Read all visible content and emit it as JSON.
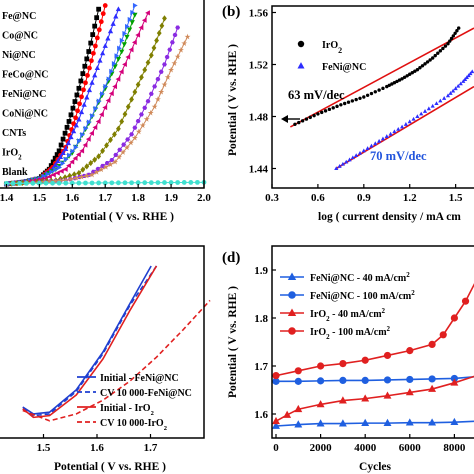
{
  "chart_data": [
    {
      "panel": "a",
      "type": "line",
      "xlabel": "Potential ( V vs. RHE )",
      "xlim": [
        1.35,
        2.0
      ],
      "ylim": [
        0,
        100
      ],
      "xticks": [
        "1.4",
        "1.5",
        "1.6",
        "1.7",
        "1.8",
        "1.9",
        "2.0"
      ],
      "legend_position": "top-left",
      "series": [
        {
          "name": "Fe@NC",
          "color": "#000000",
          "marker": "square",
          "x": [
            1.4,
            1.45,
            1.5,
            1.53,
            1.56,
            1.59,
            1.62,
            1.65,
            1.68
          ],
          "y": [
            0,
            1,
            3,
            8,
            18,
            34,
            52,
            72,
            95
          ]
        },
        {
          "name": "Co@NC",
          "color": "#ff0000",
          "marker": "circle",
          "x": [
            1.4,
            1.45,
            1.5,
            1.54,
            1.58,
            1.61,
            1.64,
            1.67,
            1.7
          ],
          "y": [
            0,
            1,
            3,
            9,
            20,
            36,
            55,
            75,
            97
          ]
        },
        {
          "name": "Ni@NC",
          "color": "#2d2dff",
          "marker": "triangle",
          "x": [
            1.4,
            1.45,
            1.5,
            1.54,
            1.58,
            1.62,
            1.66,
            1.7,
            1.74
          ],
          "y": [
            0,
            1,
            3,
            8,
            19,
            35,
            55,
            75,
            95
          ]
        },
        {
          "name": "FeCo@NC",
          "color": "#00a000",
          "marker": "down-triangle",
          "x": [
            1.4,
            1.45,
            1.5,
            1.55,
            1.6,
            1.65,
            1.7,
            1.75,
            1.79
          ],
          "y": [
            0,
            1,
            3,
            8,
            17,
            33,
            52,
            72,
            92
          ]
        },
        {
          "name": "FeNi@NC",
          "color": "#3366ff",
          "marker": "right-triangle",
          "x": [
            1.4,
            1.45,
            1.5,
            1.56,
            1.61,
            1.66,
            1.71,
            1.75,
            1.79
          ],
          "y": [
            0,
            1,
            3,
            9,
            20,
            37,
            57,
            78,
            97
          ]
        },
        {
          "name": "CoNi@NC",
          "color": "#d4007a",
          "marker": "left-triangle",
          "x": [
            1.4,
            1.46,
            1.52,
            1.58,
            1.63,
            1.68,
            1.73,
            1.78,
            1.83
          ],
          "y": [
            0,
            1,
            3,
            8,
            18,
            34,
            53,
            73,
            93
          ]
        },
        {
          "name": "CNTs",
          "color": "#7f7f00",
          "marker": "diamond",
          "x": [
            1.4,
            1.48,
            1.55,
            1.62,
            1.68,
            1.74,
            1.79,
            1.84,
            1.88
          ],
          "y": [
            0,
            1,
            2,
            6,
            15,
            30,
            50,
            70,
            90
          ]
        },
        {
          "name": "IrO2",
          "color": "#8a2be2",
          "marker": "hexagon",
          "x": [
            1.4,
            1.5,
            1.58,
            1.65,
            1.72,
            1.78,
            1.83,
            1.88,
            1.92
          ],
          "y": [
            0,
            1,
            2,
            5,
            13,
            27,
            45,
            65,
            85
          ]
        },
        {
          "name": "Blank",
          "color": "#d08a5a",
          "marker": "star",
          "x": [
            1.4,
            1.5,
            1.58,
            1.66,
            1.73,
            1.79,
            1.85,
            1.9,
            1.95
          ],
          "y": [
            0,
            1,
            2,
            5,
            12,
            25,
            42,
            62,
            80
          ]
        },
        {
          "name": "",
          "color": "#40e0d0",
          "marker": "circle",
          "x": [
            1.4,
            1.5,
            1.6,
            1.7,
            1.8,
            1.9,
            2.0
          ],
          "y": [
            0.3,
            0.4,
            0.5,
            0.6,
            0.7,
            0.8,
            0.9
          ]
        }
      ]
    },
    {
      "panel": "b",
      "type": "scatter",
      "xlabel": "log ( current density / mA cm",
      "ylabel": "Potential ( V vs. RHE )",
      "xlim": [
        0.3,
        1.62
      ],
      "ylim": [
        1.425,
        1.565
      ],
      "xticks": [
        "0.3",
        "0.6",
        "0.9",
        "1.2",
        "1.5"
      ],
      "yticks": [
        "1.44",
        "1.48",
        "1.52",
        "1.56"
      ],
      "legend_position": "top-left",
      "series": [
        {
          "name": "IrO2",
          "color": "#000000",
          "marker": "circle",
          "x": [
            0.45,
            0.6,
            0.75,
            0.9,
            1.05,
            1.15,
            1.25,
            1.35,
            1.45,
            1.52
          ],
          "y": [
            1.474,
            1.482,
            1.489,
            1.495,
            1.503,
            1.509,
            1.516,
            1.525,
            1.536,
            1.548
          ]
        },
        {
          "name": "FeNi@NC",
          "color": "#2d2dff",
          "marker": "triangle",
          "x": [
            0.72,
            0.85,
            1.0,
            1.15,
            1.3,
            1.45,
            1.55,
            1.62
          ],
          "y": [
            1.44,
            1.45,
            1.461,
            1.472,
            1.484,
            1.496,
            1.507,
            1.516
          ]
        }
      ],
      "fits": [
        {
          "label": "63 mV/dec",
          "color": "#000000",
          "x": [
            0.42,
            1.62
          ],
          "y": [
            1.472,
            1.548
          ]
        },
        {
          "label": "70 mV/dec",
          "color": "#2255dd",
          "x": [
            0.72,
            1.62
          ],
          "y": [
            1.44,
            1.503
          ]
        }
      ]
    },
    {
      "panel": "c",
      "type": "line",
      "xlabel": "Potential ( V vs. RHE )",
      "xlim": [
        1.4,
        1.8
      ],
      "ylim": [
        0,
        100
      ],
      "xticks": [
        "1.5",
        "1.6",
        "1.7"
      ],
      "legend_position": "bottom-right",
      "series": [
        {
          "name": "Initial - FeNi@NC",
          "color": "#1f3fd0",
          "style": "solid",
          "x": [
            1.45,
            1.47,
            1.5,
            1.55,
            1.6,
            1.65,
            1.69
          ],
          "y": [
            18,
            14,
            15,
            28,
            50,
            78,
            100
          ]
        },
        {
          "name": "CV 10 000-FeNi@NC",
          "color": "#1f3fd0",
          "style": "dashed",
          "x": [
            1.45,
            1.47,
            1.5,
            1.55,
            1.6,
            1.65,
            1.7
          ],
          "y": [
            17,
            13,
            14,
            27,
            49,
            77,
            100
          ]
        },
        {
          "name": "Initial - IrO2",
          "color": "#e02020",
          "style": "solid",
          "x": [
            1.45,
            1.47,
            1.5,
            1.55,
            1.6,
            1.65,
            1.7
          ],
          "y": [
            17,
            12,
            13,
            25,
            46,
            74,
            100
          ]
        },
        {
          "name": "CV 10 000-IrO2",
          "color": "#e02020",
          "style": "dashed",
          "x": [
            1.45,
            1.5,
            1.55,
            1.6,
            1.65,
            1.7,
            1.75,
            1.8
          ],
          "y": [
            16,
            10,
            14,
            22,
            33,
            47,
            63,
            80
          ]
        }
      ]
    },
    {
      "panel": "d",
      "type": "line",
      "xlabel": "Cycles",
      "ylabel": "Potential ( V vs. RHE )",
      "xlim": [
        0,
        9000
      ],
      "ylim": [
        1.55,
        1.95
      ],
      "xticks": [
        "0",
        "2000",
        "4000",
        "6000",
        "8000"
      ],
      "yticks": [
        "1.6",
        "1.7",
        "1.8",
        "1.9"
      ],
      "legend_position": "top-left",
      "series": [
        {
          "name": "FeNi@NC - 40 mA/cm",
          "color": "#1f5fe0",
          "marker": "triangle",
          "x": [
            0,
            1000,
            2000,
            3000,
            4000,
            5000,
            6000,
            7000,
            8000,
            9000
          ],
          "y": [
            1.575,
            1.578,
            1.58,
            1.58,
            1.581,
            1.581,
            1.582,
            1.582,
            1.583,
            1.585
          ]
        },
        {
          "name": "FeNi@NC - 100 mA/cm",
          "color": "#1f5fe0",
          "marker": "circle",
          "x": [
            0,
            1000,
            2000,
            3000,
            4000,
            5000,
            6000,
            7000,
            8000,
            9000
          ],
          "y": [
            1.668,
            1.668,
            1.669,
            1.67,
            1.67,
            1.671,
            1.672,
            1.673,
            1.674,
            1.678
          ]
        },
        {
          "name": "IrO2 - 40 mA/cm",
          "color": "#e02020",
          "marker": "triangle",
          "x": [
            0,
            500,
            1000,
            2000,
            3000,
            4000,
            5000,
            6000,
            7000,
            8000,
            9000
          ],
          "y": [
            1.585,
            1.598,
            1.61,
            1.62,
            1.628,
            1.632,
            1.638,
            1.645,
            1.652,
            1.665,
            1.68
          ]
        },
        {
          "name": "IrO2 - 100 mA/cm",
          "color": "#e02020",
          "marker": "circle",
          "x": [
            0,
            1000,
            2000,
            3000,
            4000,
            5000,
            6000,
            7000,
            7500,
            8000,
            8500,
            9000
          ],
          "y": [
            1.68,
            1.69,
            1.7,
            1.705,
            1.712,
            1.722,
            1.732,
            1.745,
            1.765,
            1.8,
            1.835,
            1.88
          ]
        }
      ]
    }
  ],
  "labels": {
    "panel_b": "(b)",
    "panel_d": "(d)",
    "a_legend": [
      "Fe@NC",
      "Co@NC",
      "Ni@NC",
      "FeCo@NC",
      "FeNi@NC",
      "CoNi@NC",
      "CNTs",
      "IrO",
      "Blank"
    ],
    "iro2_sub": "2",
    "cm_sup": "2",
    "b_ylabel": "Potential ( V vs. RHE )",
    "b_xlabel": "log ( current density / mA cm",
    "b_leg_iro": "IrO",
    "b_leg_feni": "FeNi@NC",
    "b_ann1": "63 mV/dec",
    "b_ann2": "70 mV/dec",
    "a_xlabel": "Potential ( V vs. RHE )",
    "c_xlabel": "Potential ( V vs. RHE )",
    "c_leg": [
      "Initial - FeNi@NC",
      "CV 10 000-FeNi@NC",
      "Initial - IrO",
      "CV 10 000-IrO"
    ],
    "d_ylabel": "Potential ( V vs. RHE )",
    "d_xlabel": "Cycles",
    "d_leg": [
      "FeNi@NC - 40 mA/cm",
      "FeNi@NC - 100 mA/cm",
      "IrO",
      "IrO"
    ],
    "d_leg_tail": [
      "",
      "",
      " - 40 mA/cm",
      " - 100 mA/cm"
    ]
  }
}
